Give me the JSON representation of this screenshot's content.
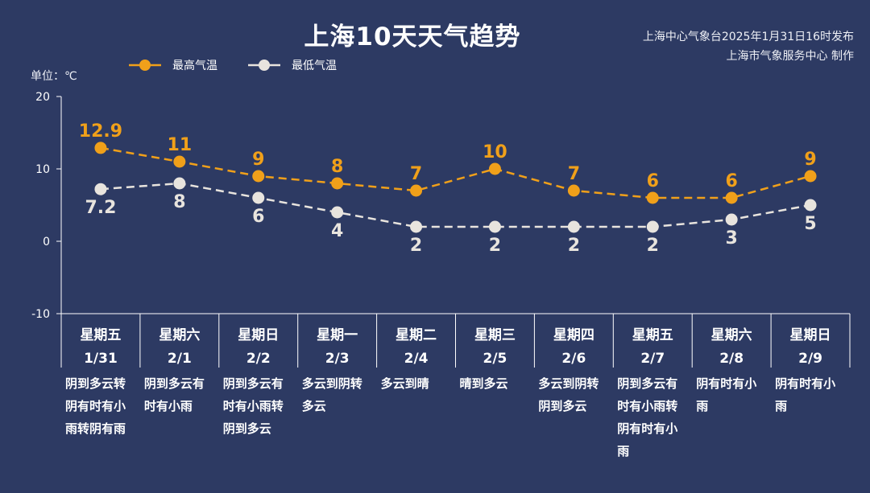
{
  "header": {
    "title": "上海10天天气趋势",
    "source_line1": "上海中心气象台2025年1月31日16时发布",
    "source_line2": "上海市气象服务中心 制作",
    "unit": "单位：℃"
  },
  "colors": {
    "background": "#2d3a63",
    "high": "#f0a01a",
    "low": "#e8e4de",
    "axis": "#ffffff"
  },
  "chart_data": {
    "type": "line",
    "title": "上海10天天气趋势",
    "ylabel": "单位：℃",
    "ylim": [
      -10,
      20
    ],
    "yticks": [
      20,
      10,
      0,
      -10
    ],
    "grid": false,
    "legend": "top-left",
    "categories": [
      "1/31",
      "2/1",
      "2/2",
      "2/3",
      "2/4",
      "2/5",
      "2/6",
      "2/7",
      "2/8",
      "2/9"
    ],
    "weekdays": [
      "星期五",
      "星期六",
      "星期日",
      "星期一",
      "星期二",
      "星期三",
      "星期四",
      "星期五",
      "星期六",
      "星期日"
    ],
    "descriptions": [
      "阴到多云转阴有时有小雨转阴有雨",
      "阴到多云有时有小雨",
      "阴到多云有时有小雨转阴到多云",
      "多云到阴转多云",
      "多云到晴",
      "晴到多云",
      "多云到阴转阴到多云",
      "阴到多云有时有小雨转阴有时有小雨",
      "阴有时有小雨",
      "阴有时有小雨"
    ],
    "series": [
      {
        "name": "最高气温",
        "values": [
          12.9,
          11,
          9,
          8,
          7,
          10,
          7,
          6,
          6,
          9
        ],
        "labels": [
          "12.9",
          "11",
          "9",
          "8",
          "7",
          "10",
          "7",
          "6",
          "6",
          "9"
        ]
      },
      {
        "name": "最低气温",
        "values": [
          7.2,
          8,
          6,
          4,
          2,
          2,
          2,
          2,
          3,
          5
        ],
        "labels": [
          "7.2",
          "8",
          "6",
          "4",
          "2",
          "2",
          "2",
          "2",
          "3",
          "5"
        ]
      }
    ]
  }
}
